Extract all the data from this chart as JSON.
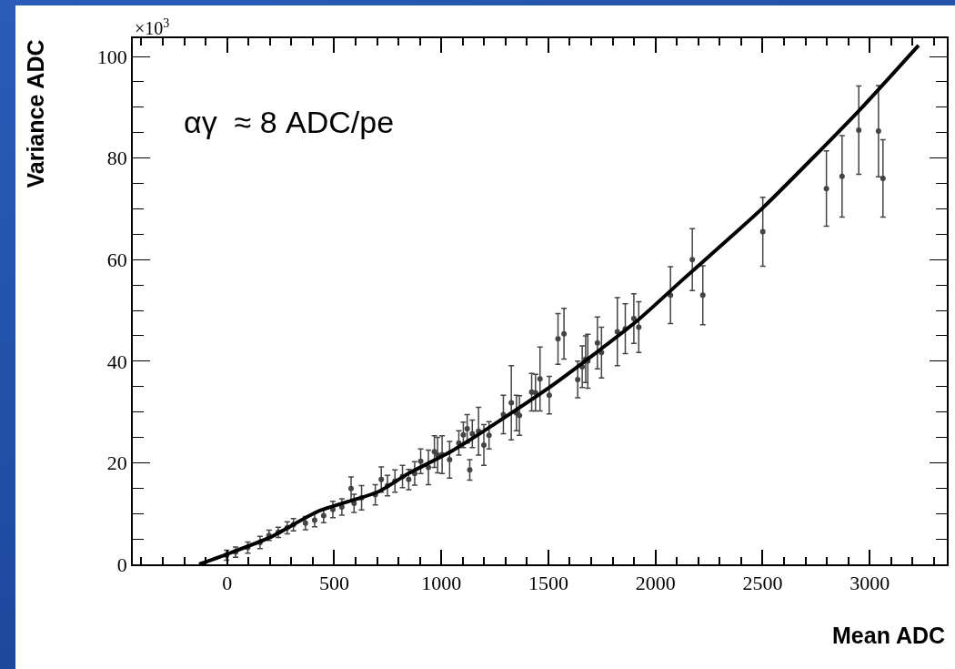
{
  "chart_data": {
    "type": "scatter",
    "xlabel": "Mean ADC",
    "ylabel": "Variance ADC",
    "annotations": [
      "×10$^{3}$",
      "αγ  ≈ 8 ADC/pe"
    ],
    "xlim": [
      -440,
      3360
    ],
    "xticks": [
      0,
      500,
      1000,
      1500,
      2000,
      2500,
      3000
    ],
    "ylim": [
      0,
      103.6
    ],
    "yticks": [
      0,
      20,
      40,
      60,
      80,
      100
    ],
    "grid": false,
    "series": [
      {
        "type": "scatter",
        "color": "#444444",
        "x": [
          -2,
          40,
          97,
          154,
          196,
          239,
          281,
          310,
          366,
          409,
          451,
          494,
          536,
          579,
          593,
          628,
          692,
          720,
          749,
          784,
          819,
          848,
          876,
          904,
          940,
          968,
          983,
          1004,
          1039,
          1082,
          1103,
          1121,
          1133,
          1145,
          1174,
          1199,
          1223,
          1290,
          1327,
          1351,
          1365,
          1422,
          1440,
          1461,
          1504,
          1545,
          1573,
          1637,
          1658,
          1674,
          1684,
          1729,
          1748,
          1822,
          1859,
          1899,
          1922,
          2070,
          2172,
          2221,
          2501,
          2798,
          2871,
          2949,
          3041,
          3062
        ],
        "values": [
          1.8,
          2.4,
          3.3,
          4.3,
          5.7,
          6.3,
          7.2,
          7.8,
          8.1,
          8.7,
          9.6,
          10.8,
          11.3,
          14.9,
          12,
          13.1,
          13.7,
          16.7,
          15.5,
          16.4,
          17.3,
          16.7,
          17.9,
          20.3,
          19.1,
          22.2,
          21.5,
          21.6,
          20.6,
          23.9,
          25.5,
          26.7,
          18.6,
          25.7,
          26.2,
          23.5,
          25.4,
          29.5,
          31.8,
          29.8,
          29.3,
          33.9,
          33.8,
          36.5,
          33.3,
          44.4,
          45.4,
          36.4,
          38.9,
          40.4,
          40,
          43.6,
          41.7,
          45.8,
          46.4,
          48.4,
          46.7,
          53,
          60,
          53,
          65.5,
          74,
          76.4,
          85.5,
          85.3,
          76
        ],
        "errors": [
          1,
          1,
          1.1,
          1.2,
          1,
          1,
          1.2,
          1.2,
          1.3,
          1.3,
          1.4,
          1.6,
          1.6,
          2.3,
          1.8,
          2.4,
          2,
          2.5,
          2,
          2.2,
          2.2,
          2,
          2.3,
          2.4,
          3.4,
          3.1,
          3.5,
          3.7,
          3.6,
          2.4,
          2.5,
          2.8,
          2,
          2.7,
          4.7,
          4,
          2.7,
          3.8,
          7.3,
          3.5,
          3.9,
          3.7,
          3.6,
          6.3,
          3.7,
          5,
          5,
          3.6,
          4.1,
          4.6,
          5.3,
          5.1,
          5,
          6.7,
          4.9,
          4.9,
          5,
          5.6,
          6.1,
          5.8,
          6.8,
          7.4,
          8,
          8.7,
          9,
          7.6
        ]
      },
      {
        "type": "line",
        "color": "#000000",
        "x": [
          -130,
          0,
          200,
          423,
          706,
          847,
          1053,
          1500,
          1910,
          2123,
          2501,
          2949,
          3228
        ],
        "values": [
          0,
          2,
          5.3,
          10.4,
          14.3,
          17.9,
          22.4,
          34.7,
          47.8,
          55.9,
          70.2,
          89.3,
          102.2
        ]
      }
    ]
  }
}
